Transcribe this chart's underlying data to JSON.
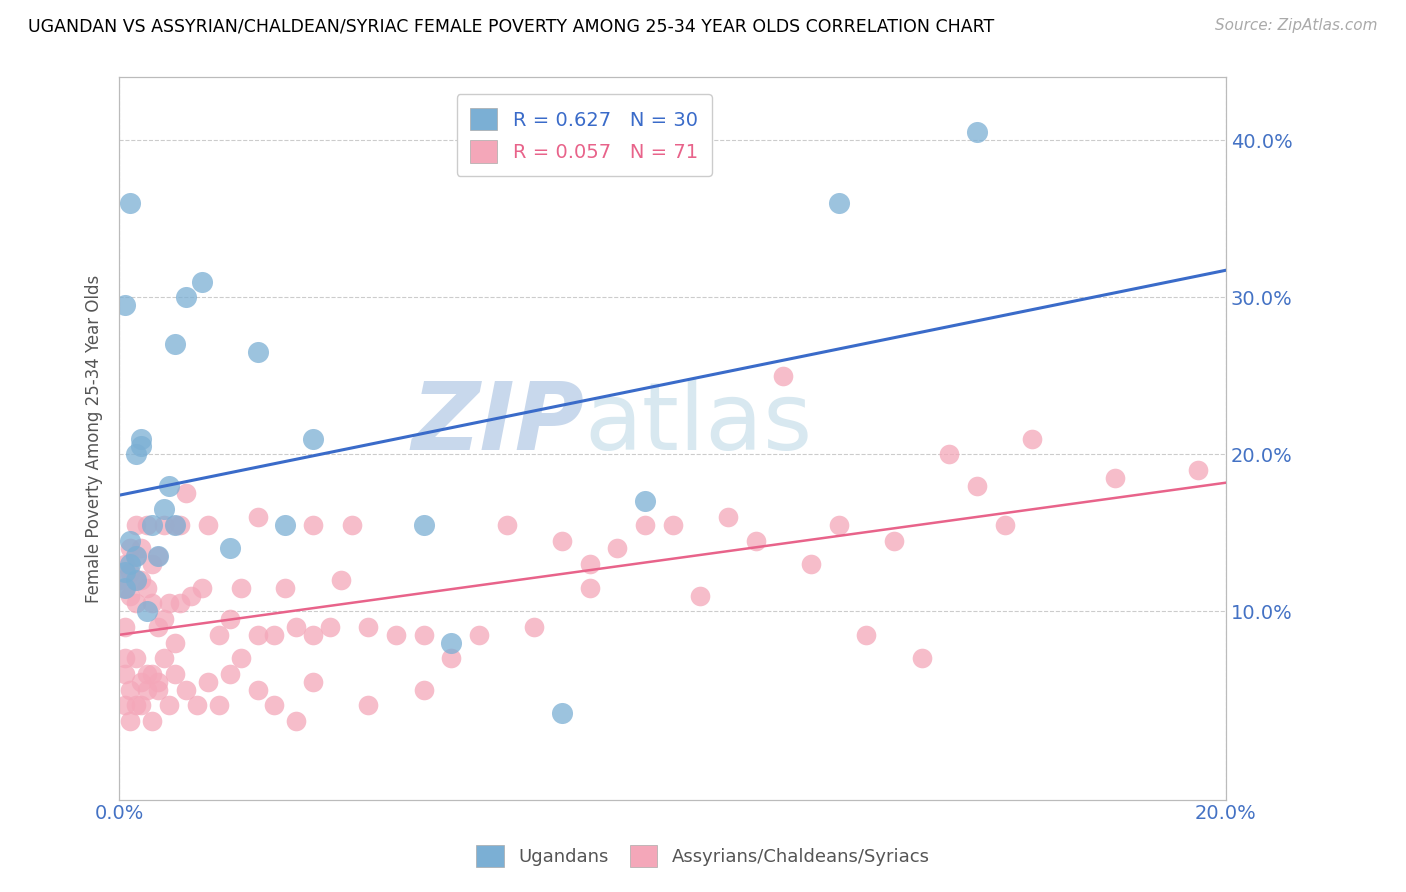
{
  "title": "UGANDAN VS ASSYRIAN/CHALDEAN/SYRIAC FEMALE POVERTY AMONG 25-34 YEAR OLDS CORRELATION CHART",
  "source": "Source: ZipAtlas.com",
  "ylabel": "Female Poverty Among 25-34 Year Olds",
  "xlim": [
    0.0,
    0.2
  ],
  "ylim": [
    -0.02,
    0.44
  ],
  "xtick_positions": [
    0.0,
    0.2
  ],
  "xtick_labels": [
    "0.0%",
    "20.0%"
  ],
  "ytick_positions": [
    0.1,
    0.2,
    0.3,
    0.4
  ],
  "ytick_labels": [
    "10.0%",
    "20.0%",
    "30.0%",
    "40.0%"
  ],
  "blue_dot_color": "#7BAFD4",
  "pink_dot_color": "#F4A7B9",
  "blue_line_color": "#3A6BC9",
  "pink_line_color": "#E8638A",
  "tick_label_color": "#4472C4",
  "watermark_zip": "ZIP",
  "watermark_atlas": "atlas",
  "ugandan_x": [
    0.001,
    0.001,
    0.002,
    0.002,
    0.003,
    0.003,
    0.003,
    0.004,
    0.004,
    0.005,
    0.006,
    0.007,
    0.008,
    0.009,
    0.01,
    0.01,
    0.012,
    0.015,
    0.02,
    0.025,
    0.03,
    0.035,
    0.055,
    0.06,
    0.08,
    0.095,
    0.13,
    0.155,
    0.001,
    0.002
  ],
  "ugandan_y": [
    0.115,
    0.125,
    0.13,
    0.145,
    0.12,
    0.135,
    0.2,
    0.21,
    0.205,
    0.1,
    0.155,
    0.135,
    0.165,
    0.18,
    0.155,
    0.27,
    0.3,
    0.31,
    0.14,
    0.265,
    0.155,
    0.21,
    0.155,
    0.08,
    0.035,
    0.17,
    0.36,
    0.405,
    0.295,
    0.36
  ],
  "assyrian_x": [
    0.001,
    0.001,
    0.001,
    0.002,
    0.002,
    0.002,
    0.003,
    0.003,
    0.003,
    0.003,
    0.004,
    0.004,
    0.005,
    0.005,
    0.006,
    0.006,
    0.007,
    0.007,
    0.008,
    0.008,
    0.009,
    0.01,
    0.01,
    0.011,
    0.011,
    0.012,
    0.013,
    0.015,
    0.016,
    0.018,
    0.02,
    0.022,
    0.025,
    0.025,
    0.028,
    0.03,
    0.032,
    0.035,
    0.035,
    0.038,
    0.04,
    0.042,
    0.045,
    0.05,
    0.055,
    0.06,
    0.065,
    0.07,
    0.075,
    0.08,
    0.085,
    0.085,
    0.09,
    0.095,
    0.1,
    0.105,
    0.11,
    0.115,
    0.12,
    0.125,
    0.13,
    0.135,
    0.14,
    0.145,
    0.15,
    0.155,
    0.16,
    0.165,
    0.18,
    0.195,
    0.0
  ],
  "assyrian_y": [
    0.115,
    0.13,
    0.09,
    0.11,
    0.125,
    0.14,
    0.105,
    0.12,
    0.135,
    0.155,
    0.12,
    0.14,
    0.115,
    0.155,
    0.105,
    0.13,
    0.09,
    0.135,
    0.095,
    0.155,
    0.105,
    0.08,
    0.155,
    0.105,
    0.155,
    0.175,
    0.11,
    0.115,
    0.155,
    0.085,
    0.095,
    0.115,
    0.085,
    0.16,
    0.085,
    0.115,
    0.09,
    0.085,
    0.155,
    0.09,
    0.12,
    0.155,
    0.09,
    0.085,
    0.085,
    0.07,
    0.085,
    0.155,
    0.09,
    0.145,
    0.115,
    0.13,
    0.14,
    0.155,
    0.155,
    0.11,
    0.16,
    0.145,
    0.25,
    0.13,
    0.155,
    0.085,
    0.145,
    0.07,
    0.2,
    0.18,
    0.155,
    0.21,
    0.185,
    0.19,
    0.12
  ],
  "assyrian_y_below": [
    0.07,
    0.04,
    0.06,
    0.03,
    0.05,
    0.07,
    0.04,
    0.04,
    0.055,
    0.06,
    0.05,
    0.03,
    0.06,
    0.05,
    0.055,
    0.07,
    0.04,
    0.06,
    0.05,
    0.04,
    0.055,
    0.04,
    0.06,
    0.07,
    0.05,
    0.04,
    0.03,
    0.055,
    0.04,
    0.05
  ],
  "assyrian_x_below": [
    0.001,
    0.001,
    0.001,
    0.002,
    0.002,
    0.003,
    0.003,
    0.004,
    0.004,
    0.005,
    0.005,
    0.006,
    0.006,
    0.007,
    0.007,
    0.008,
    0.009,
    0.01,
    0.012,
    0.014,
    0.016,
    0.018,
    0.02,
    0.022,
    0.025,
    0.028,
    0.032,
    0.035,
    0.045,
    0.055
  ]
}
